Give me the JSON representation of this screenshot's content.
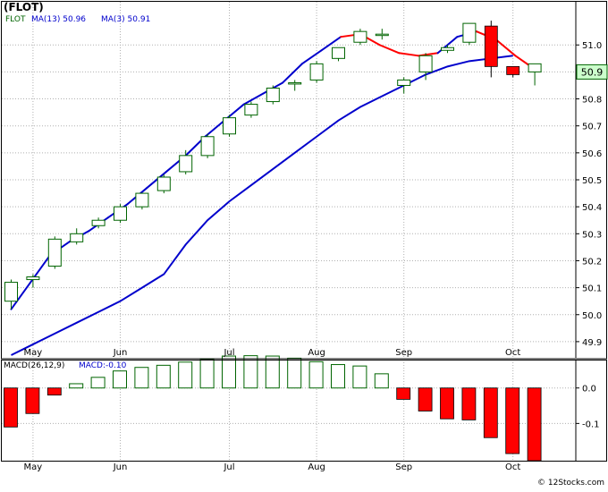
{
  "title": "(FLOT)",
  "watermark": "© 12Stocks.com",
  "colors": {
    "up_candle": "#006400",
    "down_candle": "#ff0000",
    "ma_fast": "#ff0000",
    "ma_slow": "#0000cc",
    "grid": "#b0b0b0",
    "border": "#000000",
    "last_price_box": "#ccffcc",
    "legend_ticker": "#006400",
    "legend_ma": "#0000cc",
    "macd_label": "#0000cc"
  },
  "chart_data": [
    {
      "type": "candlestick",
      "legend": {
        "ticker": "FLOT",
        "ma13": "MA(13)  50.96",
        "ma3": "MA(3)  50.91"
      },
      "last_price": "50.9",
      "ylim": [
        49.84,
        51.16
      ],
      "y_ticks": [
        49.9,
        50.0,
        50.1,
        50.2,
        50.3,
        50.4,
        50.5,
        50.6,
        50.7,
        50.8,
        50.9,
        51.0
      ],
      "y_tick_labels": [
        "49.9",
        "50.0",
        "50.1",
        "50.2",
        "50.3",
        "50.4",
        "50.5",
        "50.6",
        "50.7",
        "50.8",
        "50.9",
        "51.0"
      ],
      "x_month_labels": [
        "May",
        "Jun",
        "Jul",
        "Aug",
        "Sep",
        "Oct"
      ],
      "x_month_index": [
        1,
        5,
        10,
        14,
        18,
        23
      ],
      "bars": [
        {
          "o": 50.05,
          "h": 50.13,
          "l": 50.02,
          "c": 50.12
        },
        {
          "o": 50.13,
          "h": 50.15,
          "l": 50.1,
          "c": 50.14
        },
        {
          "o": 50.18,
          "h": 50.29,
          "l": 50.17,
          "c": 50.28
        },
        {
          "o": 50.27,
          "h": 50.32,
          "l": 50.26,
          "c": 50.3
        },
        {
          "o": 50.33,
          "h": 50.36,
          "l": 50.32,
          "c": 50.35
        },
        {
          "o": 50.35,
          "h": 50.41,
          "l": 50.34,
          "c": 50.4
        },
        {
          "o": 50.4,
          "h": 50.45,
          "l": 50.39,
          "c": 50.45
        },
        {
          "o": 50.46,
          "h": 50.52,
          "l": 50.45,
          "c": 50.51
        },
        {
          "o": 50.53,
          "h": 50.61,
          "l": 50.52,
          "c": 50.59
        },
        {
          "o": 50.59,
          "h": 50.67,
          "l": 50.58,
          "c": 50.66
        },
        {
          "o": 50.67,
          "h": 50.74,
          "l": 50.66,
          "c": 50.73
        },
        {
          "o": 50.74,
          "h": 50.79,
          "l": 50.73,
          "c": 50.78
        },
        {
          "o": 50.79,
          "h": 50.85,
          "l": 50.78,
          "c": 50.84
        },
        {
          "o": 50.86,
          "h": 50.87,
          "l": 50.83,
          "c": 50.86
        },
        {
          "o": 50.87,
          "h": 50.94,
          "l": 50.86,
          "c": 50.93
        },
        {
          "o": 50.95,
          "h": 50.99,
          "l": 50.94,
          "c": 50.99
        },
        {
          "o": 51.01,
          "h": 51.06,
          "l": 51.0,
          "c": 51.05
        },
        {
          "o": 51.04,
          "h": 51.06,
          "l": 51.02,
          "c": 51.04
        },
        {
          "o": 50.85,
          "h": 50.88,
          "l": 50.82,
          "c": 50.87
        },
        {
          "o": 50.9,
          "h": 50.97,
          "l": 50.87,
          "c": 50.96
        },
        {
          "o": 50.98,
          "h": 51.0,
          "l": 50.97,
          "c": 50.99
        },
        {
          "o": 51.01,
          "h": 51.08,
          "l": 51.0,
          "c": 51.08
        },
        {
          "o": 51.07,
          "h": 51.09,
          "l": 50.88,
          "c": 50.92
        },
        {
          "o": 50.92,
          "h": 50.92,
          "l": 50.88,
          "c": 50.89
        },
        {
          "o": 50.9,
          "h": 50.93,
          "l": 50.85,
          "c": 50.93
        }
      ],
      "ma13": [
        49.85,
        49.89,
        49.93,
        49.97,
        50.01,
        50.05,
        50.1,
        50.15,
        50.26,
        50.35,
        50.42,
        50.48,
        50.54,
        50.6,
        50.66,
        50.72,
        50.77,
        50.81,
        50.85,
        50.89,
        50.92,
        50.94,
        50.95,
        50.96
      ],
      "ma3": [
        50.02,
        50.12,
        50.22,
        50.27,
        50.31,
        50.36,
        50.41,
        50.47,
        50.53,
        50.59,
        50.66,
        50.72,
        50.78,
        50.82,
        50.86,
        50.93,
        50.98,
        51.03,
        51.04,
        51.0,
        50.97,
        50.96,
        50.97,
        51.03,
        51.05,
        51.02,
        50.96,
        50.91
      ],
      "ma3_colors": [
        "#0000cc",
        "#0000cc",
        "#0000cc",
        "#0000cc",
        "#0000cc",
        "#0000cc",
        "#0000cc",
        "#0000cc",
        "#0000cc",
        "#0000cc",
        "#0000cc",
        "#0000cc",
        "#0000cc",
        "#0000cc",
        "#0000cc",
        "#0000cc",
        "#0000cc",
        "#ff0000",
        "#ff0000",
        "#ff0000",
        "#ff0000",
        "#ff0000",
        "#0000cc",
        "#0000cc",
        "#ff0000",
        "#ff0000",
        "#ff0000",
        "#ff0000"
      ]
    },
    {
      "type": "bar",
      "legend": {
        "macd": "MACD(26,12,9)",
        "value": "MACD:-0.10"
      },
      "ylim": [
        -0.205,
        0.08
      ],
      "y_ticks": [
        0.0,
        -0.1
      ],
      "y_tick_labels": [
        "0.0",
        "-0.1"
      ],
      "x_month_labels": [
        "May",
        "Jun",
        "Jul",
        "Aug",
        "Sep",
        "Oct"
      ],
      "values": [
        -0.11,
        -0.072,
        -0.02,
        0.012,
        0.03,
        0.048,
        0.058,
        0.064,
        0.073,
        0.08,
        0.09,
        0.091,
        0.09,
        0.084,
        0.074,
        0.066,
        0.062,
        0.04,
        -0.032,
        -0.065,
        -0.087,
        -0.09,
        -0.14,
        -0.185,
        -0.205
      ]
    }
  ]
}
